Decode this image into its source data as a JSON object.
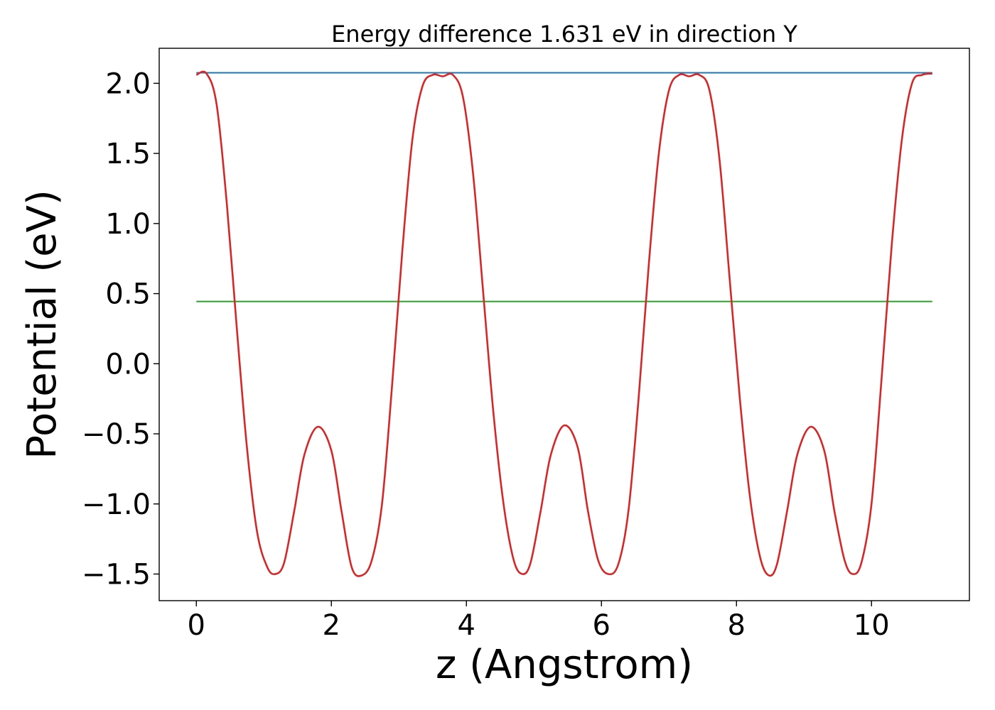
{
  "chart_data": {
    "type": "line",
    "title": "Energy difference 1.631 eV in direction Y",
    "xlabel": "z (Angstrom)",
    "ylabel": "Potential (eV)",
    "xlim": [
      -0.55,
      11.45
    ],
    "ylim": [
      -1.69,
      2.25
    ],
    "xticks": [
      0,
      2,
      4,
      6,
      8,
      10
    ],
    "xtick_labels": [
      "0",
      "2",
      "4",
      "6",
      "8",
      "10"
    ],
    "yticks": [
      2.0,
      1.5,
      1.0,
      0.5,
      0.0,
      -0.5,
      -1.0,
      -1.5
    ],
    "ytick_labels": [
      "2.0",
      "1.5",
      "1.0",
      "0.5",
      "0.0",
      "−0.5",
      "−1.0",
      "−1.5"
    ],
    "grid": false,
    "legend": "none",
    "series": [
      {
        "color": "#d62728",
        "style": "curve",
        "x": [
          0.0,
          0.15,
          0.3,
          0.45,
          0.6,
          0.75,
          0.9,
          1.05,
          1.17,
          1.3,
          1.45,
          1.6,
          1.8,
          2.0,
          2.15,
          2.3,
          2.45,
          2.6,
          2.75,
          2.9,
          3.05,
          3.2,
          3.35,
          3.5,
          3.65,
          3.8,
          3.95,
          4.1,
          4.25,
          4.4,
          4.55,
          4.7,
          4.83,
          4.95,
          5.1,
          5.25,
          5.45,
          5.65,
          5.8,
          5.95,
          6.1,
          6.25,
          6.4,
          6.55,
          6.7,
          6.85,
          7.0,
          7.15,
          7.3,
          7.45,
          7.6,
          7.75,
          7.9,
          8.05,
          8.2,
          8.35,
          8.48,
          8.6,
          8.75,
          8.9,
          9.1,
          9.3,
          9.45,
          9.6,
          9.72,
          9.85,
          10.0,
          10.15,
          10.3,
          10.45,
          10.6,
          10.75,
          10.9
        ],
        "y": [
          2.06,
          2.07,
          1.85,
          1.15,
          0.25,
          -0.6,
          -1.2,
          -1.45,
          -1.5,
          -1.42,
          -1.05,
          -0.65,
          -0.45,
          -0.62,
          -1.05,
          -1.45,
          -1.51,
          -1.4,
          -1.0,
          -0.15,
          0.8,
          1.6,
          1.98,
          2.06,
          2.05,
          2.06,
          1.9,
          1.35,
          0.5,
          -0.35,
          -1.0,
          -1.4,
          -1.5,
          -1.42,
          -1.05,
          -0.65,
          -0.44,
          -0.6,
          -1.05,
          -1.4,
          -1.5,
          -1.43,
          -1.05,
          -0.25,
          0.7,
          1.5,
          1.95,
          2.06,
          2.05,
          2.06,
          1.95,
          1.45,
          0.6,
          -0.25,
          -0.95,
          -1.38,
          -1.51,
          -1.43,
          -1.05,
          -0.65,
          -0.45,
          -0.62,
          -1.05,
          -1.4,
          -1.5,
          -1.42,
          -1.0,
          -0.1,
          0.85,
          1.6,
          2.0,
          2.06,
          2.07
        ]
      },
      {
        "color": "#1f77b4",
        "style": "hline",
        "x": [
          0.0,
          10.9
        ],
        "y": [
          2.075,
          2.075
        ]
      },
      {
        "color": "#2ca02c",
        "style": "hline",
        "x": [
          0.0,
          10.9
        ],
        "y": [
          0.444,
          0.444
        ]
      }
    ]
  }
}
